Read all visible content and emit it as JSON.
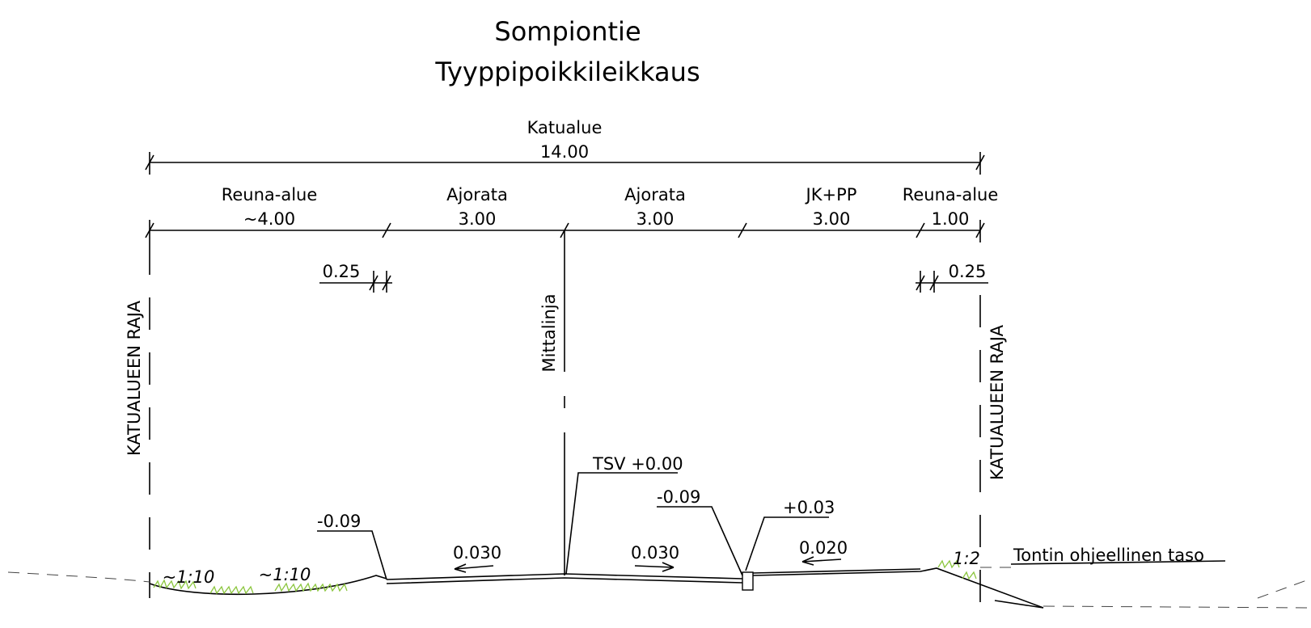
{
  "header": {
    "title": "Sompiontie",
    "subtitle": "Tyyppipoikkileikkaus"
  },
  "total": {
    "label": "Katualue",
    "width": "14.00"
  },
  "segments": [
    {
      "label": "Reuna-alue",
      "width": "~4.00"
    },
    {
      "label": "Ajorata",
      "width": "3.00"
    },
    {
      "label": "Ajorata",
      "width": "3.00"
    },
    {
      "label": "JK+PP",
      "width": "3.00"
    },
    {
      "label": "Reuna-alue",
      "width": "1.00"
    }
  ],
  "curb_widths": [
    "0.25",
    "0.25"
  ],
  "boundaries": [
    "KATUALUEEN RAJA",
    "KATUALUEEN RAJA"
  ],
  "centerline": "Mittalinja",
  "elevations": {
    "tsv": "TSV +0.00",
    "left_edge": "-0.09",
    "right_edge": "-0.09",
    "curb_top": "+0.03"
  },
  "crossfalls": [
    "0.030",
    "0.030",
    "0.020"
  ],
  "slopes": [
    "~1:10",
    "~1:10",
    "1:2"
  ],
  "ground_note": "Tontin ohjeellinen taso"
}
